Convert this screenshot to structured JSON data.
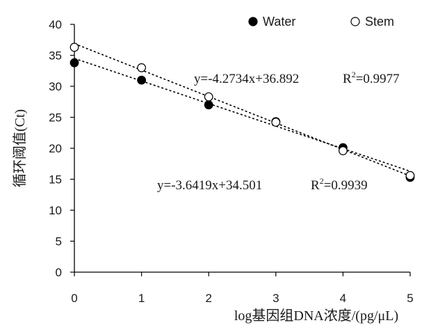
{
  "chart_data": {
    "type": "scatter",
    "xlabel": "log基因组DNA浓度/(pg/μL)",
    "ylabel": "循环阈值(Ct)",
    "xlim": [
      0,
      5
    ],
    "ylim": [
      0,
      40
    ],
    "x_ticks": [
      "0",
      "1",
      "2",
      "3",
      "4",
      "5"
    ],
    "y_ticks": [
      "0",
      "5",
      "10",
      "15",
      "20",
      "25",
      "30",
      "35",
      "40"
    ],
    "grid": false,
    "legend_position": "top",
    "series": [
      {
        "name": "Water",
        "marker": "filled-circle",
        "x": [
          0,
          1,
          2,
          3,
          4,
          5
        ],
        "y": [
          33.8,
          31.0,
          27.0,
          24.3,
          20.1,
          15.3
        ],
        "trendline": {
          "slope": -3.6419,
          "intercept": 34.501,
          "label": "y=-3.6419x+34.501",
          "r2_label": "R2=0.9939"
        }
      },
      {
        "name": "Stem",
        "marker": "open-circle",
        "x": [
          0,
          1,
          2,
          3,
          4,
          5
        ],
        "y": [
          36.3,
          33.0,
          28.3,
          24.2,
          19.6,
          15.6
        ],
        "trendline": {
          "slope": -4.2734,
          "intercept": 36.892,
          "label": "y=-4.2734x+36.892",
          "r2_label": "R2=0.9977"
        }
      }
    ],
    "colors": {
      "axis": "#000000",
      "marker": "#000000",
      "text": "#1a1a1a"
    }
  }
}
